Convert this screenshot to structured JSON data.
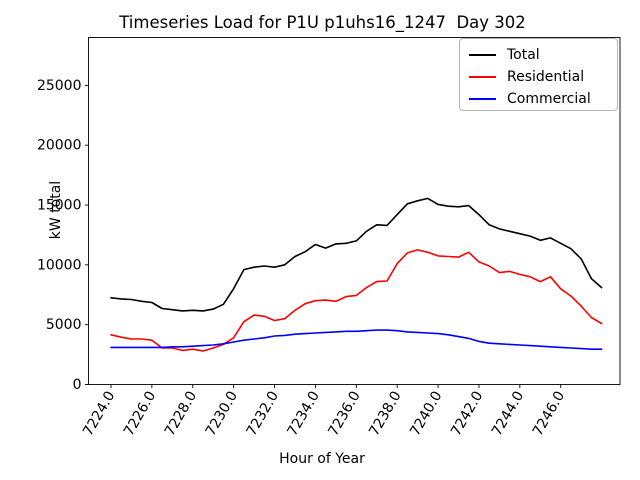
{
  "chart_data": {
    "type": "line",
    "title": "Timeseries Load for P1U p1uhs16_1247  Day 302",
    "xlabel": "Hour of Year",
    "ylabel": "kW total",
    "xlim": [
      7222.9,
      7248.9
    ],
    "ylim": [
      0,
      29000
    ],
    "grid": false,
    "legend_position": "upper right",
    "x_tick_rotation": 60,
    "x_ticks": [
      7224,
      7226,
      7228,
      7230,
      7232,
      7234,
      7236,
      7238,
      7240,
      7242,
      7244,
      7246
    ],
    "x_tick_labels": [
      "7224.0",
      "7226.0",
      "7228.0",
      "7230.0",
      "7232.0",
      "7234.0",
      "7236.0",
      "7238.0",
      "7240.0",
      "7242.0",
      "7244.0",
      "7246.0"
    ],
    "y_ticks": [
      0,
      5000,
      10000,
      15000,
      20000,
      25000
    ],
    "y_tick_labels": [
      "0",
      "5000",
      "10000",
      "15000",
      "20000",
      "25000"
    ],
    "x": [
      7224.0,
      7224.5,
      7225.0,
      7225.5,
      7226.0,
      7226.5,
      7227.0,
      7227.5,
      7228.0,
      7228.5,
      7229.0,
      7229.5,
      7230.0,
      7230.5,
      7231.0,
      7231.5,
      7232.0,
      7232.5,
      7233.0,
      7233.5,
      7234.0,
      7234.5,
      7235.0,
      7235.5,
      7236.0,
      7236.5,
      7237.0,
      7237.5,
      7238.0,
      7238.5,
      7239.0,
      7239.5,
      7240.0,
      7240.5,
      7241.0,
      7241.5,
      7242.0,
      7242.5,
      7243.0,
      7243.5,
      7244.0,
      7244.5,
      7245.0,
      7245.5,
      7246.0,
      7246.5,
      7247.0,
      7247.5,
      7248.0
    ],
    "series": [
      {
        "name": "Total",
        "color": "#000000",
        "values": [
          7250,
          7150,
          7100,
          6950,
          6850,
          6350,
          6250,
          6150,
          6200,
          6150,
          6300,
          6700,
          8000,
          9600,
          9800,
          9900,
          9800,
          10000,
          10700,
          11100,
          11700,
          11400,
          11750,
          11800,
          12000,
          12800,
          13350,
          13300,
          14200,
          15100,
          15350,
          15550,
          15050,
          14900,
          14850,
          14950,
          14200,
          13350,
          13000,
          12800,
          12600,
          12400,
          12050,
          12250,
          11800,
          11350,
          10500,
          8850,
          8100
        ]
      },
      {
        "name": "Residential",
        "color": "#ff0000",
        "values": [
          4150,
          3950,
          3800,
          3800,
          3700,
          3050,
          3050,
          2850,
          2950,
          2800,
          3050,
          3350,
          3900,
          5250,
          5800,
          5700,
          5350,
          5500,
          6200,
          6750,
          7000,
          7050,
          6950,
          7350,
          7450,
          8100,
          8600,
          8650,
          10100,
          11000,
          11250,
          11050,
          10750,
          10700,
          10650,
          11050,
          10250,
          9900,
          9350,
          9450,
          9200,
          9000,
          8600,
          9000,
          8000,
          7400,
          6550,
          5600,
          5100
        ]
      },
      {
        "name": "Commercial",
        "color": "#0000ff",
        "values": [
          3100,
          3100,
          3100,
          3100,
          3100,
          3100,
          3150,
          3150,
          3200,
          3250,
          3300,
          3400,
          3550,
          3700,
          3800,
          3900,
          4050,
          4100,
          4200,
          4250,
          4300,
          4350,
          4400,
          4450,
          4450,
          4500,
          4550,
          4550,
          4500,
          4400,
          4350,
          4300,
          4250,
          4150,
          4000,
          3850,
          3600,
          3450,
          3400,
          3350,
          3300,
          3250,
          3200,
          3150,
          3100,
          3050,
          3000,
          2950,
          2950
        ]
      }
    ]
  }
}
